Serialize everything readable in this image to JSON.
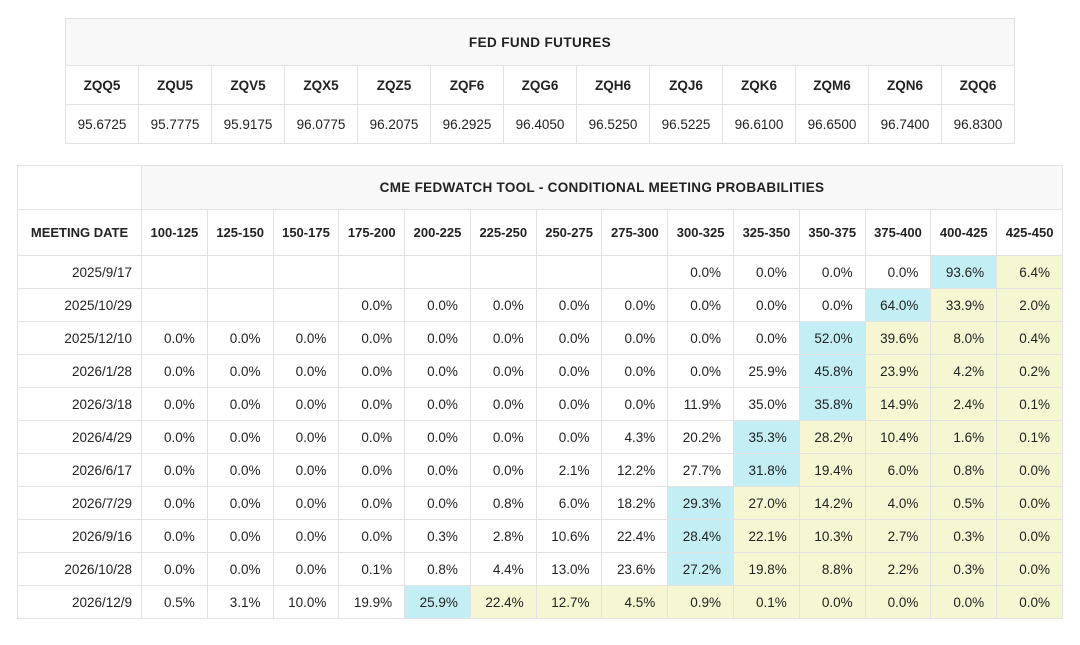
{
  "colors": {
    "highlight_cyan": "#c2eef4",
    "highlight_yellow": "#f6f6d2",
    "header_band_bg": "#f8f8f8",
    "grid_border": "#e2e2e2",
    "text": "#222222"
  },
  "futures": {
    "title": "FED FUND FUTURES",
    "tickers": [
      "ZQQ5",
      "ZQU5",
      "ZQV5",
      "ZQX5",
      "ZQZ5",
      "ZQF6",
      "ZQG6",
      "ZQH6",
      "ZQJ6",
      "ZQK6",
      "ZQM6",
      "ZQN6",
      "ZQQ6"
    ],
    "prices": [
      "95.6725",
      "95.7775",
      "95.9175",
      "96.0775",
      "96.2075",
      "96.2925",
      "96.4050",
      "96.5250",
      "96.5225",
      "96.6100",
      "96.6500",
      "96.7400",
      "96.8300"
    ]
  },
  "fedwatch": {
    "title": "CME FEDWATCH TOOL - CONDITIONAL MEETING PROBABILITIES",
    "date_header": "MEETING DATE",
    "bin_headers": [
      "100-125",
      "125-150",
      "150-175",
      "175-200",
      "200-225",
      "225-250",
      "250-275",
      "275-300",
      "300-325",
      "325-350",
      "350-375",
      "375-400",
      "400-425",
      "425-450"
    ],
    "rows": [
      {
        "date": "2025/9/17",
        "values": [
          "",
          "",
          "",
          "",
          "",
          "",
          "",
          "",
          "0.0%",
          "0.0%",
          "0.0%",
          "0.0%",
          "93.6%",
          "6.4%"
        ],
        "highlights": [
          "none",
          "none",
          "none",
          "none",
          "none",
          "none",
          "none",
          "none",
          "none",
          "none",
          "none",
          "none",
          "cyan",
          "yellow"
        ]
      },
      {
        "date": "2025/10/29",
        "values": [
          "",
          "",
          "",
          "0.0%",
          "0.0%",
          "0.0%",
          "0.0%",
          "0.0%",
          "0.0%",
          "0.0%",
          "0.0%",
          "64.0%",
          "33.9%",
          "2.0%"
        ],
        "highlights": [
          "none",
          "none",
          "none",
          "none",
          "none",
          "none",
          "none",
          "none",
          "none",
          "none",
          "none",
          "cyan",
          "yellow",
          "yellow"
        ]
      },
      {
        "date": "2025/12/10",
        "values": [
          "0.0%",
          "0.0%",
          "0.0%",
          "0.0%",
          "0.0%",
          "0.0%",
          "0.0%",
          "0.0%",
          "0.0%",
          "0.0%",
          "52.0%",
          "39.6%",
          "8.0%",
          "0.4%"
        ],
        "highlights": [
          "none",
          "none",
          "none",
          "none",
          "none",
          "none",
          "none",
          "none",
          "none",
          "none",
          "cyan",
          "yellow",
          "yellow",
          "yellow"
        ]
      },
      {
        "date": "2026/1/28",
        "values": [
          "0.0%",
          "0.0%",
          "0.0%",
          "0.0%",
          "0.0%",
          "0.0%",
          "0.0%",
          "0.0%",
          "0.0%",
          "25.9%",
          "45.8%",
          "23.9%",
          "4.2%",
          "0.2%"
        ],
        "highlights": [
          "none",
          "none",
          "none",
          "none",
          "none",
          "none",
          "none",
          "none",
          "none",
          "none",
          "cyan",
          "yellow",
          "yellow",
          "yellow"
        ]
      },
      {
        "date": "2026/3/18",
        "values": [
          "0.0%",
          "0.0%",
          "0.0%",
          "0.0%",
          "0.0%",
          "0.0%",
          "0.0%",
          "0.0%",
          "11.9%",
          "35.0%",
          "35.8%",
          "14.9%",
          "2.4%",
          "0.1%"
        ],
        "highlights": [
          "none",
          "none",
          "none",
          "none",
          "none",
          "none",
          "none",
          "none",
          "none",
          "none",
          "cyan",
          "yellow",
          "yellow",
          "yellow"
        ]
      },
      {
        "date": "2026/4/29",
        "values": [
          "0.0%",
          "0.0%",
          "0.0%",
          "0.0%",
          "0.0%",
          "0.0%",
          "0.0%",
          "4.3%",
          "20.2%",
          "35.3%",
          "28.2%",
          "10.4%",
          "1.6%",
          "0.1%"
        ],
        "highlights": [
          "none",
          "none",
          "none",
          "none",
          "none",
          "none",
          "none",
          "none",
          "none",
          "cyan",
          "yellow",
          "yellow",
          "yellow",
          "yellow"
        ]
      },
      {
        "date": "2026/6/17",
        "values": [
          "0.0%",
          "0.0%",
          "0.0%",
          "0.0%",
          "0.0%",
          "0.0%",
          "2.1%",
          "12.2%",
          "27.7%",
          "31.8%",
          "19.4%",
          "6.0%",
          "0.8%",
          "0.0%"
        ],
        "highlights": [
          "none",
          "none",
          "none",
          "none",
          "none",
          "none",
          "none",
          "none",
          "none",
          "cyan",
          "yellow",
          "yellow",
          "yellow",
          "yellow"
        ]
      },
      {
        "date": "2026/7/29",
        "values": [
          "0.0%",
          "0.0%",
          "0.0%",
          "0.0%",
          "0.0%",
          "0.8%",
          "6.0%",
          "18.2%",
          "29.3%",
          "27.0%",
          "14.2%",
          "4.0%",
          "0.5%",
          "0.0%"
        ],
        "highlights": [
          "none",
          "none",
          "none",
          "none",
          "none",
          "none",
          "none",
          "none",
          "cyan",
          "yellow",
          "yellow",
          "yellow",
          "yellow",
          "yellow"
        ]
      },
      {
        "date": "2026/9/16",
        "values": [
          "0.0%",
          "0.0%",
          "0.0%",
          "0.0%",
          "0.3%",
          "2.8%",
          "10.6%",
          "22.4%",
          "28.4%",
          "22.1%",
          "10.3%",
          "2.7%",
          "0.3%",
          "0.0%"
        ],
        "highlights": [
          "none",
          "none",
          "none",
          "none",
          "none",
          "none",
          "none",
          "none",
          "cyan",
          "yellow",
          "yellow",
          "yellow",
          "yellow",
          "yellow"
        ]
      },
      {
        "date": "2026/10/28",
        "values": [
          "0.0%",
          "0.0%",
          "0.0%",
          "0.1%",
          "0.8%",
          "4.4%",
          "13.0%",
          "23.6%",
          "27.2%",
          "19.8%",
          "8.8%",
          "2.2%",
          "0.3%",
          "0.0%"
        ],
        "highlights": [
          "none",
          "none",
          "none",
          "none",
          "none",
          "none",
          "none",
          "none",
          "cyan",
          "yellow",
          "yellow",
          "yellow",
          "yellow",
          "yellow"
        ]
      },
      {
        "date": "2026/12/9",
        "values": [
          "0.5%",
          "3.1%",
          "10.0%",
          "19.9%",
          "25.9%",
          "22.4%",
          "12.7%",
          "4.5%",
          "0.9%",
          "0.1%",
          "0.0%",
          "0.0%",
          "0.0%",
          "0.0%"
        ],
        "highlights": [
          "none",
          "none",
          "none",
          "none",
          "cyan",
          "yellow",
          "yellow",
          "yellow",
          "yellow",
          "yellow",
          "yellow",
          "yellow",
          "yellow",
          "yellow"
        ]
      }
    ]
  }
}
